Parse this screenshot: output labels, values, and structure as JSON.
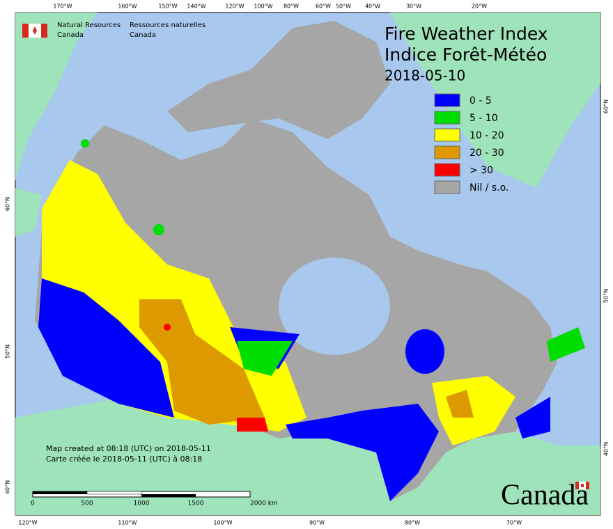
{
  "header": {
    "org_en_1": "Natural Resources",
    "org_en_2": "Canada",
    "org_fr_1": "Ressources naturelles",
    "org_fr_2": "Canada"
  },
  "title": {
    "line_en": "Fire Weather Index",
    "line_fr": "Indice Forêt-Météo",
    "date": "2018-05-10"
  },
  "legend": [
    {
      "label": "0 - 5",
      "color": "#0000ff"
    },
    {
      "label": "5 - 10",
      "color": "#00dd00"
    },
    {
      "label": "10 - 20",
      "color": "#ffff00"
    },
    {
      "label": "20 - 30",
      "color": "#dd9900"
    },
    {
      "label": "> 30",
      "color": "#ff0000"
    },
    {
      "label": "Nil / s.o.",
      "color": "#a6a6a6"
    }
  ],
  "notes": {
    "created_en": "Map created at 08:18 (UTC) on 2018-05-11",
    "created_fr": "Carte créée le 2018-05-11 (UTC) à 08:18"
  },
  "scale_bar": {
    "labels": [
      "0",
      "500",
      "1000",
      "1500",
      "2000 km"
    ]
  },
  "graticule": {
    "top": [
      "170°W",
      "160°W",
      "150°W",
      "140°W",
      "120°W",
      "100°W",
      "80°W",
      "60°W",
      "50°W",
      "40°W",
      "30°W",
      "20°W"
    ],
    "bottom": [
      "120°W",
      "110°W",
      "100°W",
      "90°W",
      "80°W",
      "70°W"
    ],
    "left": [
      "60°N",
      "50°N",
      "40°N"
    ],
    "right": [
      "60°N",
      "50°N",
      "40°N"
    ]
  },
  "wordmark": "Canada"
}
